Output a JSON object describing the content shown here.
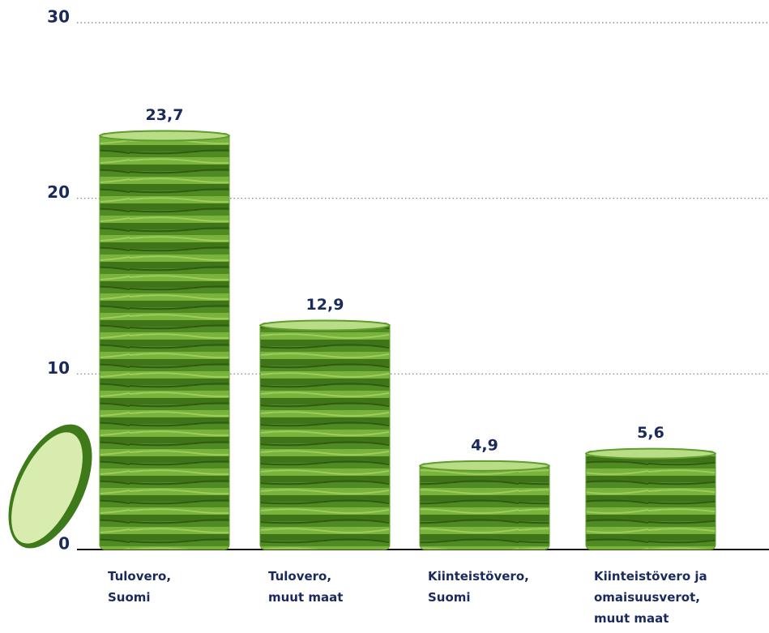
{
  "chart_data": {
    "type": "bar",
    "categories": [
      "Tulovero,\nSuomi",
      "Tulovero,\nmuut maat",
      "Kiinteistövero,\nSuomi",
      "Kiinteistövero ja\nomaisuusverot,\nmuut maat"
    ],
    "values": [
      23.7,
      12.9,
      4.9,
      5.6
    ],
    "value_labels": [
      "23,7",
      "12,9",
      "4,9",
      "5,6"
    ],
    "color": "#5f9e2c",
    "ylim": [
      0,
      30
    ],
    "yticks": [
      0,
      10,
      20,
      30
    ],
    "grid": true
  }
}
